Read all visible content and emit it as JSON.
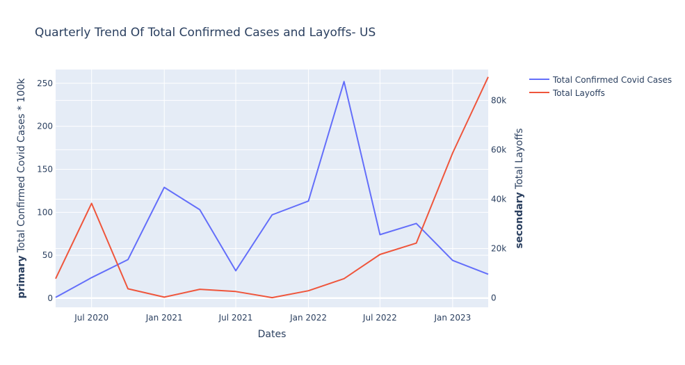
{
  "chart_data": {
    "type": "line",
    "title": "Quarterly Trend Of Total Confirmed Cases and Layoffs- US",
    "xlabel": "Dates",
    "ylabel_bold": "primary",
    "ylabel": "Total Confirmed Covid Cases * 100k",
    "y2label_bold": "secondary",
    "y2label": "Total Layoffs",
    "x": [
      "2020-04-01",
      "2020-07-01",
      "2020-10-01",
      "2021-01-01",
      "2021-04-01",
      "2021-07-01",
      "2021-10-01",
      "2022-01-01",
      "2022-04-01",
      "2022-07-01",
      "2022-10-01",
      "2023-01-01",
      "2023-04-01"
    ],
    "xlim": [
      "2020-04-01",
      "2023-04-01"
    ],
    "x_ticks": [
      {
        "date": "2020-07-01",
        "label": "Jul 2020"
      },
      {
        "date": "2021-01-01",
        "label": "Jan 2021"
      },
      {
        "date": "2021-07-01",
        "label": "Jul 2021"
      },
      {
        "date": "2022-01-01",
        "label": "Jan 2022"
      },
      {
        "date": "2022-07-01",
        "label": "Jul 2022"
      },
      {
        "date": "2023-01-01",
        "label": "Jan 2023"
      }
    ],
    "ylim": [
      -10.5,
      266
    ],
    "y_ticks": [
      0,
      50,
      100,
      150,
      200,
      250
    ],
    "y2lim": [
      -3800,
      92500
    ],
    "y2_ticks": [
      {
        "v": 0,
        "label": "0"
      },
      {
        "v": 20000,
        "label": "20k"
      },
      {
        "v": 40000,
        "label": "40k"
      },
      {
        "v": 60000,
        "label": "60k"
      },
      {
        "v": 80000,
        "label": "80k"
      }
    ],
    "grid": true,
    "legend": "top-right",
    "series": [
      {
        "name": "Total Confirmed Covid Cases",
        "axis": "y",
        "color": "#636efa",
        "values": [
          1,
          24,
          45,
          129,
          103,
          32,
          97,
          113,
          252,
          74,
          87,
          44,
          28
        ]
      },
      {
        "name": "Total Layoffs",
        "axis": "y2",
        "color": "#EF553B",
        "values": [
          7800,
          38300,
          3700,
          300,
          3500,
          2600,
          100,
          2900,
          7800,
          17600,
          22200,
          58700,
          89500
        ]
      }
    ]
  }
}
